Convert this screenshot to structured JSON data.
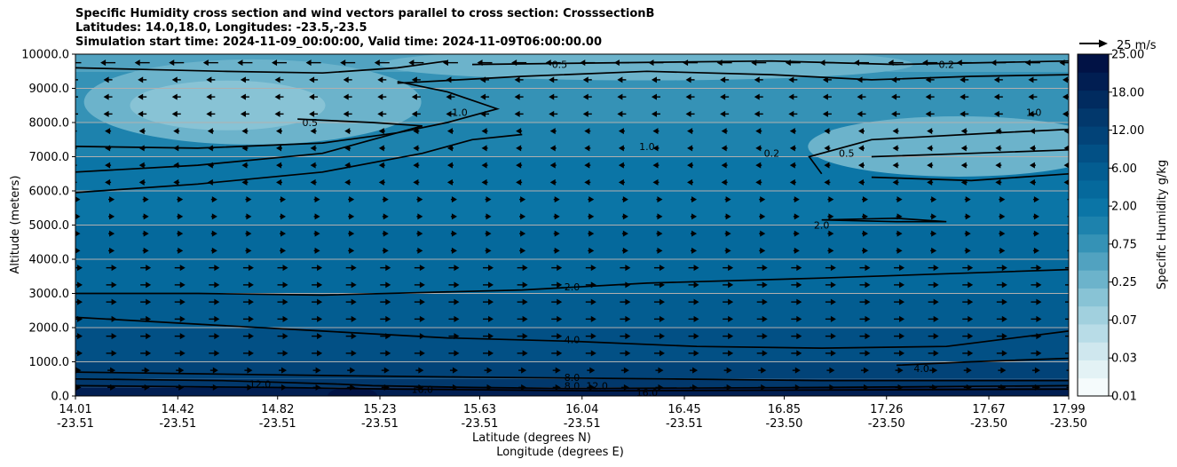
{
  "chart_data": {
    "type": "contour",
    "title_lines": [
      "Specific Humidity cross section and wind vectors parallel to cross section: CrosssectionB",
      "Latitudes: 14.0,18.0, Longitudes: -23.5,-23.5",
      "Simulation start time: 2024-11-09_00:00:00, Valid time: 2024-11-09T06:00:00.00"
    ],
    "xlabel_lines": [
      "Latitude (degrees N)",
      "Longitude (degrees E)"
    ],
    "ylabel": "Altitude (meters)",
    "ylim": [
      0,
      10000
    ],
    "xlim": [
      14.01,
      17.99
    ],
    "grid": true,
    "y_ticks": [
      {
        "value": 0,
        "label": "0.0"
      },
      {
        "value": 1000,
        "label": "1000.0"
      },
      {
        "value": 2000,
        "label": "2000.0"
      },
      {
        "value": 3000,
        "label": "3000.0"
      },
      {
        "value": 4000,
        "label": "4000.0"
      },
      {
        "value": 5000,
        "label": "5000.0"
      },
      {
        "value": 6000,
        "label": "6000.0"
      },
      {
        "value": 7000,
        "label": "7000.0"
      },
      {
        "value": 8000,
        "label": "8000.0"
      },
      {
        "value": 9000,
        "label": "9000.0"
      },
      {
        "value": 10000,
        "label": "10000.0"
      }
    ],
    "x_ticks": [
      {
        "lat": 14.01,
        "lat_label": "14.01",
        "lon_label": "-23.51"
      },
      {
        "lat": 14.42,
        "lat_label": "14.42",
        "lon_label": "-23.51"
      },
      {
        "lat": 14.82,
        "lat_label": "14.82",
        "lon_label": "-23.51"
      },
      {
        "lat": 15.23,
        "lat_label": "15.23",
        "lon_label": "-23.51"
      },
      {
        "lat": 15.63,
        "lat_label": "15.63",
        "lon_label": "-23.51"
      },
      {
        "lat": 16.04,
        "lat_label": "16.04",
        "lon_label": "-23.51"
      },
      {
        "lat": 16.45,
        "lat_label": "16.45",
        "lon_label": "-23.51"
      },
      {
        "lat": 16.85,
        "lat_label": "16.85",
        "lon_label": "-23.50"
      },
      {
        "lat": 17.26,
        "lat_label": "17.26",
        "lon_label": "-23.50"
      },
      {
        "lat": 17.67,
        "lat_label": "17.67",
        "lon_label": "-23.50"
      },
      {
        "lat": 17.99,
        "lat_label": "17.99",
        "lon_label": "-23.50"
      }
    ],
    "colorbar": {
      "label": "Specific Humidity g/kg",
      "levels": [
        "0.01",
        "0.02",
        "0.03",
        "0.05",
        "0.07",
        "0.10",
        "0.25",
        "0.40",
        "0.75",
        "1.00",
        "2.00",
        "4.00",
        "6.00",
        "9.00",
        "12.00",
        "15.00",
        "18.00",
        "21.00",
        "25.00"
      ],
      "tick_labels": [
        "0.01",
        "0.03",
        "0.07",
        "0.25",
        "0.75",
        "2.00",
        "6.00",
        "12.00",
        "18.00",
        "25.00"
      ],
      "colors": [
        "#f5fbfc",
        "#e3f2f5",
        "#cfe7ee",
        "#b8dce7",
        "#a1d0de",
        "#88c3d5",
        "#6cb3cb",
        "#51a2c0",
        "#3592b6",
        "#1d82ad",
        "#0b75a6",
        "#05699c",
        "#035d91",
        "#025085",
        "#024378",
        "#02386c",
        "#012b5f",
        "#011e52",
        "#011245"
      ]
    },
    "quiver_key": {
      "label": "25 m/s",
      "speed": 25
    },
    "contour_labels": [
      "0.2",
      "0.5",
      "1.0",
      "2.0",
      "4.0",
      "8.0",
      "12.0",
      "16.0"
    ]
  },
  "colors": {
    "contour_line": "#000000",
    "grid": "#b0b0b0"
  }
}
